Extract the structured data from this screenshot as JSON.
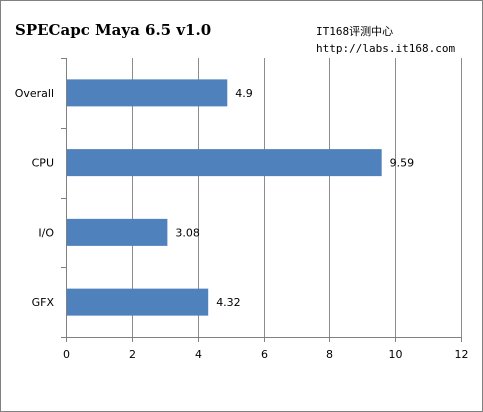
{
  "chart_data": {
    "type": "bar",
    "orientation": "horizontal",
    "title": "SPECapc Maya 6.5 v1.0",
    "categories": [
      "Overall",
      "CPU",
      "I/O",
      "GFX"
    ],
    "values": [
      4.9,
      9.59,
      3.08,
      4.32
    ],
    "data_labels": [
      "4.9",
      "9.59",
      "3.08",
      "4.32"
    ],
    "xlim": [
      0,
      12
    ],
    "xticks": [
      0,
      2,
      4,
      6,
      8,
      10,
      12
    ],
    "xlabel": "",
    "ylabel": "",
    "grid": "vertical",
    "legend": "none",
    "bar_color": "#4F81BD"
  },
  "watermark": {
    "line1": "IT168评测中心",
    "line2": "http://labs.it168.com"
  }
}
